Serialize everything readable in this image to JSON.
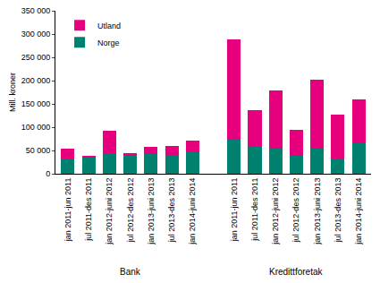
{
  "chart_data": {
    "type": "bar",
    "stacked": true,
    "y_label": "Mill. kroner",
    "categories": [
      "jan 2011-jun 2011",
      "jul 2011-des 2011",
      "jan 2012-juni 2012",
      "jul 2012-des 2012",
      "jan 2013-juni 2013",
      "jul 2013-des 2013",
      "jan 2014-juni 2014",
      null,
      "jan 2011-jun 2011",
      "jul 2011-des 2011",
      "jan 2012-juni 2012",
      "jul 2012-des 2012",
      "jan 2013-juni 2013",
      "jul 2013-des 2013",
      "jan 2014-juni 2014"
    ],
    "group_labels": [
      "Bank",
      "Kredittforetak"
    ],
    "series": [
      {
        "name": "Norge",
        "color": "#00806e",
        "values": [
          32000,
          36000,
          45000,
          38000,
          43000,
          40000,
          47000,
          null,
          73000,
          57000,
          53000,
          38000,
          53000,
          33000,
          65000
        ]
      },
      {
        "name": "Utland",
        "color": "#e6007e",
        "values": [
          22000,
          1000,
          47000,
          6000,
          14000,
          19000,
          24000,
          null,
          215000,
          79000,
          126000,
          57000,
          149000,
          93000,
          94000
        ]
      }
    ],
    "ylim": [
      0,
      350000
    ],
    "yticks": [
      0,
      {
        "value": 50000,
        "label": "50 000"
      },
      {
        "value": 100000,
        "label": "100 000"
      },
      {
        "value": 150000,
        "label": "150 000"
      },
      {
        "value": 200000,
        "label": "200 000"
      },
      {
        "value": 250000,
        "label": "250 000"
      },
      {
        "value": 300000,
        "label": "300 000"
      },
      {
        "value": 350000,
        "label": "350 000"
      }
    ],
    "grid": false,
    "legend": "top-left"
  }
}
